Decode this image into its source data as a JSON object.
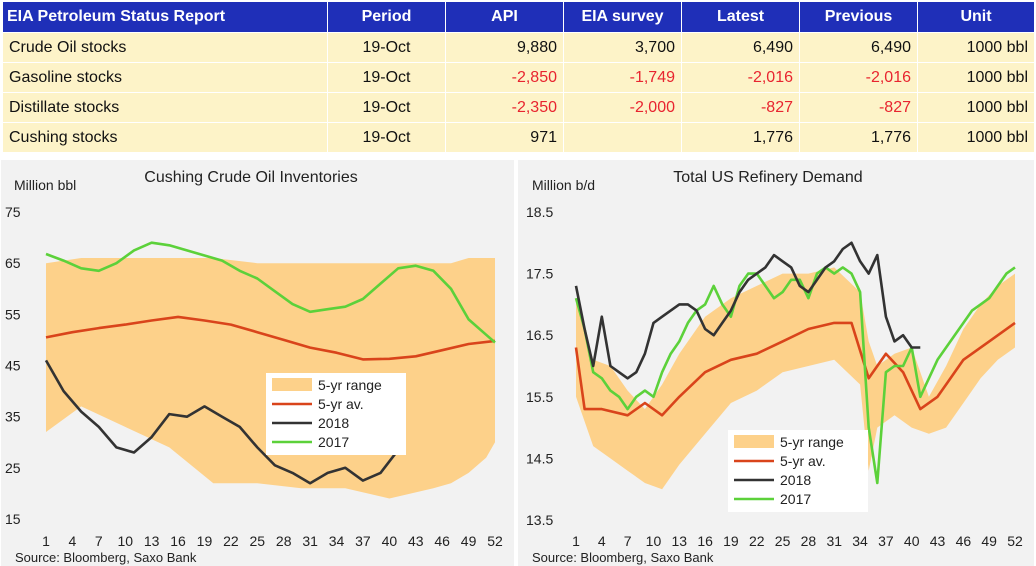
{
  "table": {
    "headers": [
      "EIA Petroleum Status Report",
      "Period",
      "API",
      "EIA survey",
      "Latest",
      "Previous",
      "Unit"
    ],
    "rows": [
      {
        "name": "Crude Oil stocks",
        "period": "19-Oct",
        "api": "9,880",
        "survey": "3,700",
        "latest": "6,490",
        "previous": "6,490",
        "unit": "1000 bbl",
        "negative": false
      },
      {
        "name": "Gasoline stocks",
        "period": "19-Oct",
        "api": "-2,850",
        "survey": "-1,749",
        "latest": "-2,016",
        "previous": "-2,016",
        "unit": "1000 bbl",
        "negative": true
      },
      {
        "name": "Distillate stocks",
        "period": "19-Oct",
        "api": "-2,350",
        "survey": "-2,000",
        "latest": "-827",
        "previous": "-827",
        "unit": "1000 bbl",
        "negative": true
      },
      {
        "name": "Cushing stocks",
        "period": "19-Oct",
        "api": "971",
        "survey": "",
        "latest": "1,776",
        "previous": "1,776",
        "unit": "1000 bbl",
        "negative": false
      }
    ]
  },
  "colors": {
    "header_bg": "#1f2fb8",
    "row_bg": "#fdf3c8",
    "negative": "#e8242f",
    "range_fill": "#fdd18a",
    "avg_line": "#d9441b",
    "line_2018": "#333333",
    "line_2017": "#5cd13a"
  },
  "chart_data": [
    {
      "type": "line",
      "title": "Cushing Crude Oil Inventories",
      "ylabel": "Million bbl",
      "xlabel": "",
      "source": "Source: Bloomberg, Saxo Bank",
      "ylim": [
        15,
        75
      ],
      "yticks": [
        75,
        65,
        55,
        45,
        35,
        25,
        15
      ],
      "xlim": [
        1,
        52
      ],
      "xticks": [
        1,
        4,
        7,
        10,
        13,
        16,
        19,
        22,
        25,
        28,
        31,
        34,
        37,
        40,
        43,
        46,
        49,
        52
      ],
      "legend": {
        "position": "center",
        "labels": {
          "range": "5-yr range",
          "avg": "5-yr av.",
          "y2018": "2018",
          "y2017": "2017"
        }
      },
      "range_x": [
        1,
        5,
        10,
        15,
        20,
        25,
        30,
        35,
        40,
        45,
        47,
        49,
        51,
        52
      ],
      "range_upper": [
        65,
        66,
        66,
        66,
        66,
        65,
        65,
        65,
        65,
        65,
        65,
        66,
        66,
        66
      ],
      "range_lower": [
        32,
        37,
        33,
        29,
        22,
        22,
        21,
        21,
        19,
        21,
        22,
        24,
        27,
        30
      ],
      "series": [
        {
          "name": "5-yr av.",
          "x": [
            1,
            4,
            7,
            10,
            13,
            16,
            19,
            22,
            25,
            28,
            31,
            34,
            37,
            40,
            43,
            46,
            49,
            52
          ],
          "values": [
            50.5,
            51.5,
            52.3,
            53,
            53.8,
            54.5,
            53.8,
            53,
            51.5,
            50,
            48.5,
            47.5,
            46.2,
            46.3,
            46.8,
            48,
            49.2,
            49.8
          ]
        },
        {
          "name": "2018",
          "x": [
            1,
            3,
            5,
            7,
            9,
            11,
            13,
            15,
            17,
            19,
            21,
            23,
            25,
            27,
            29,
            31,
            33,
            35,
            37,
            39,
            41
          ],
          "values": [
            46,
            40,
            36,
            33,
            29,
            28,
            31,
            35.5,
            35,
            37,
            35,
            33,
            29,
            25.5,
            24,
            22,
            24,
            25,
            22.5,
            24,
            28.5
          ]
        },
        {
          "name": "2017",
          "x": [
            1,
            3,
            5,
            7,
            9,
            11,
            13,
            15,
            17,
            19,
            21,
            23,
            25,
            27,
            29,
            31,
            33,
            35,
            37,
            39,
            41,
            43,
            45,
            47,
            49,
            51,
            52
          ],
          "values": [
            66.8,
            65.5,
            64,
            63.5,
            65,
            67.5,
            69,
            68.5,
            67.5,
            66.5,
            65.5,
            63.5,
            62,
            59.5,
            57,
            55.5,
            56,
            56.5,
            58,
            61,
            64,
            64.5,
            63.5,
            60,
            54,
            51,
            49.5
          ]
        }
      ]
    },
    {
      "type": "line",
      "title": "Total US Refinery Demand",
      "ylabel": "Million b/d",
      "xlabel": "",
      "source": "Source: Bloomberg, Saxo Bank",
      "ylim": [
        13.5,
        18.5
      ],
      "yticks": [
        18.5,
        17.5,
        16.5,
        15.5,
        14.5,
        13.5
      ],
      "ytick_labels": [
        "18.5",
        "17.5",
        "16.5",
        "15.5",
        "14.5",
        "13.5"
      ],
      "xlim": [
        1,
        52
      ],
      "xticks": [
        1,
        4,
        7,
        10,
        13,
        16,
        19,
        22,
        25,
        28,
        31,
        34,
        37,
        40,
        43,
        46,
        49,
        52
      ],
      "legend": {
        "position": "bottom-center",
        "labels": {
          "range": "5-yr range",
          "avg": "5-yr av.",
          "y2018": "2018",
          "y2017": "2017"
        }
      },
      "range_x": [
        1,
        3,
        5,
        7,
        9,
        11,
        13,
        16,
        19,
        22,
        25,
        28,
        31,
        34,
        35,
        36,
        38,
        40,
        42,
        44,
        46,
        48,
        50,
        52
      ],
      "range_upper": [
        17.1,
        16.1,
        16,
        15.6,
        15.3,
        15.7,
        16.2,
        16.8,
        17.1,
        17.3,
        17.5,
        17.5,
        17.6,
        17.2,
        16.4,
        16,
        16.2,
        16.3,
        15.5,
        16,
        16.6,
        17,
        17.3,
        17.5
      ],
      "range_lower": [
        15.5,
        14.7,
        14.5,
        14.3,
        14.1,
        14,
        14.4,
        14.9,
        15.4,
        15.6,
        15.9,
        16,
        16.1,
        15.7,
        14.3,
        15,
        15.2,
        15,
        14.9,
        15,
        15.4,
        15.8,
        16.1,
        16.3
      ],
      "series": [
        {
          "name": "5-yr av.",
          "x": [
            1,
            2,
            4,
            7,
            9,
            11,
            13,
            16,
            19,
            22,
            25,
            28,
            31,
            33,
            35,
            37,
            39,
            41,
            43,
            46,
            49,
            52
          ],
          "values": [
            16.3,
            15.3,
            15.3,
            15.2,
            15.4,
            15.2,
            15.5,
            15.9,
            16.1,
            16.2,
            16.4,
            16.6,
            16.7,
            16.7,
            15.8,
            16.2,
            15.9,
            15.3,
            15.5,
            16.1,
            16.4,
            16.7
          ]
        },
        {
          "name": "2018",
          "x": [
            1,
            2,
            3,
            4,
            5,
            6,
            7,
            8,
            9,
            10,
            11,
            12,
            13,
            14,
            15,
            16,
            17,
            18,
            19,
            20,
            21,
            22,
            23,
            24,
            25,
            26,
            27,
            28,
            29,
            30,
            31,
            32,
            33,
            34,
            35,
            36,
            37,
            38,
            39,
            40,
            41
          ],
          "values": [
            17.3,
            16.6,
            16,
            16.8,
            16,
            15.9,
            15.8,
            15.9,
            16.2,
            16.7,
            16.8,
            16.9,
            17,
            17,
            16.9,
            16.6,
            16.5,
            16.7,
            16.9,
            17.2,
            17.4,
            17.5,
            17.6,
            17.8,
            17.7,
            17.6,
            17.3,
            17.2,
            17.4,
            17.6,
            17.7,
            17.9,
            18,
            17.7,
            17.5,
            17.8,
            16.8,
            16.4,
            16.5,
            16.3,
            16.3
          ]
        },
        {
          "name": "2017",
          "x": [
            1,
            2,
            3,
            4,
            5,
            6,
            7,
            8,
            9,
            10,
            11,
            12,
            13,
            14,
            15,
            16,
            17,
            18,
            19,
            20,
            21,
            22,
            23,
            24,
            25,
            26,
            27,
            28,
            29,
            30,
            31,
            32,
            33,
            34,
            35,
            36,
            37,
            38,
            39,
            40,
            41,
            42,
            43,
            44,
            45,
            46,
            47,
            48,
            49,
            50,
            51,
            52
          ],
          "values": [
            17.1,
            16.6,
            15.9,
            15.8,
            15.6,
            15.5,
            15.3,
            15.5,
            15.6,
            15.5,
            15.9,
            16.2,
            16.4,
            16.7,
            16.9,
            17,
            17.3,
            17,
            16.8,
            17.3,
            17.5,
            17.5,
            17.3,
            17.1,
            17.2,
            17.4,
            17.4,
            17.1,
            17.5,
            17.6,
            17.5,
            17.6,
            17.5,
            17.2,
            15,
            14.1,
            15.9,
            16.0,
            16.0,
            16.3,
            15.5,
            15.8,
            16.1,
            16.3,
            16.5,
            16.7,
            16.9,
            17.0,
            17.1,
            17.3,
            17.5,
            17.6
          ]
        }
      ]
    }
  ]
}
